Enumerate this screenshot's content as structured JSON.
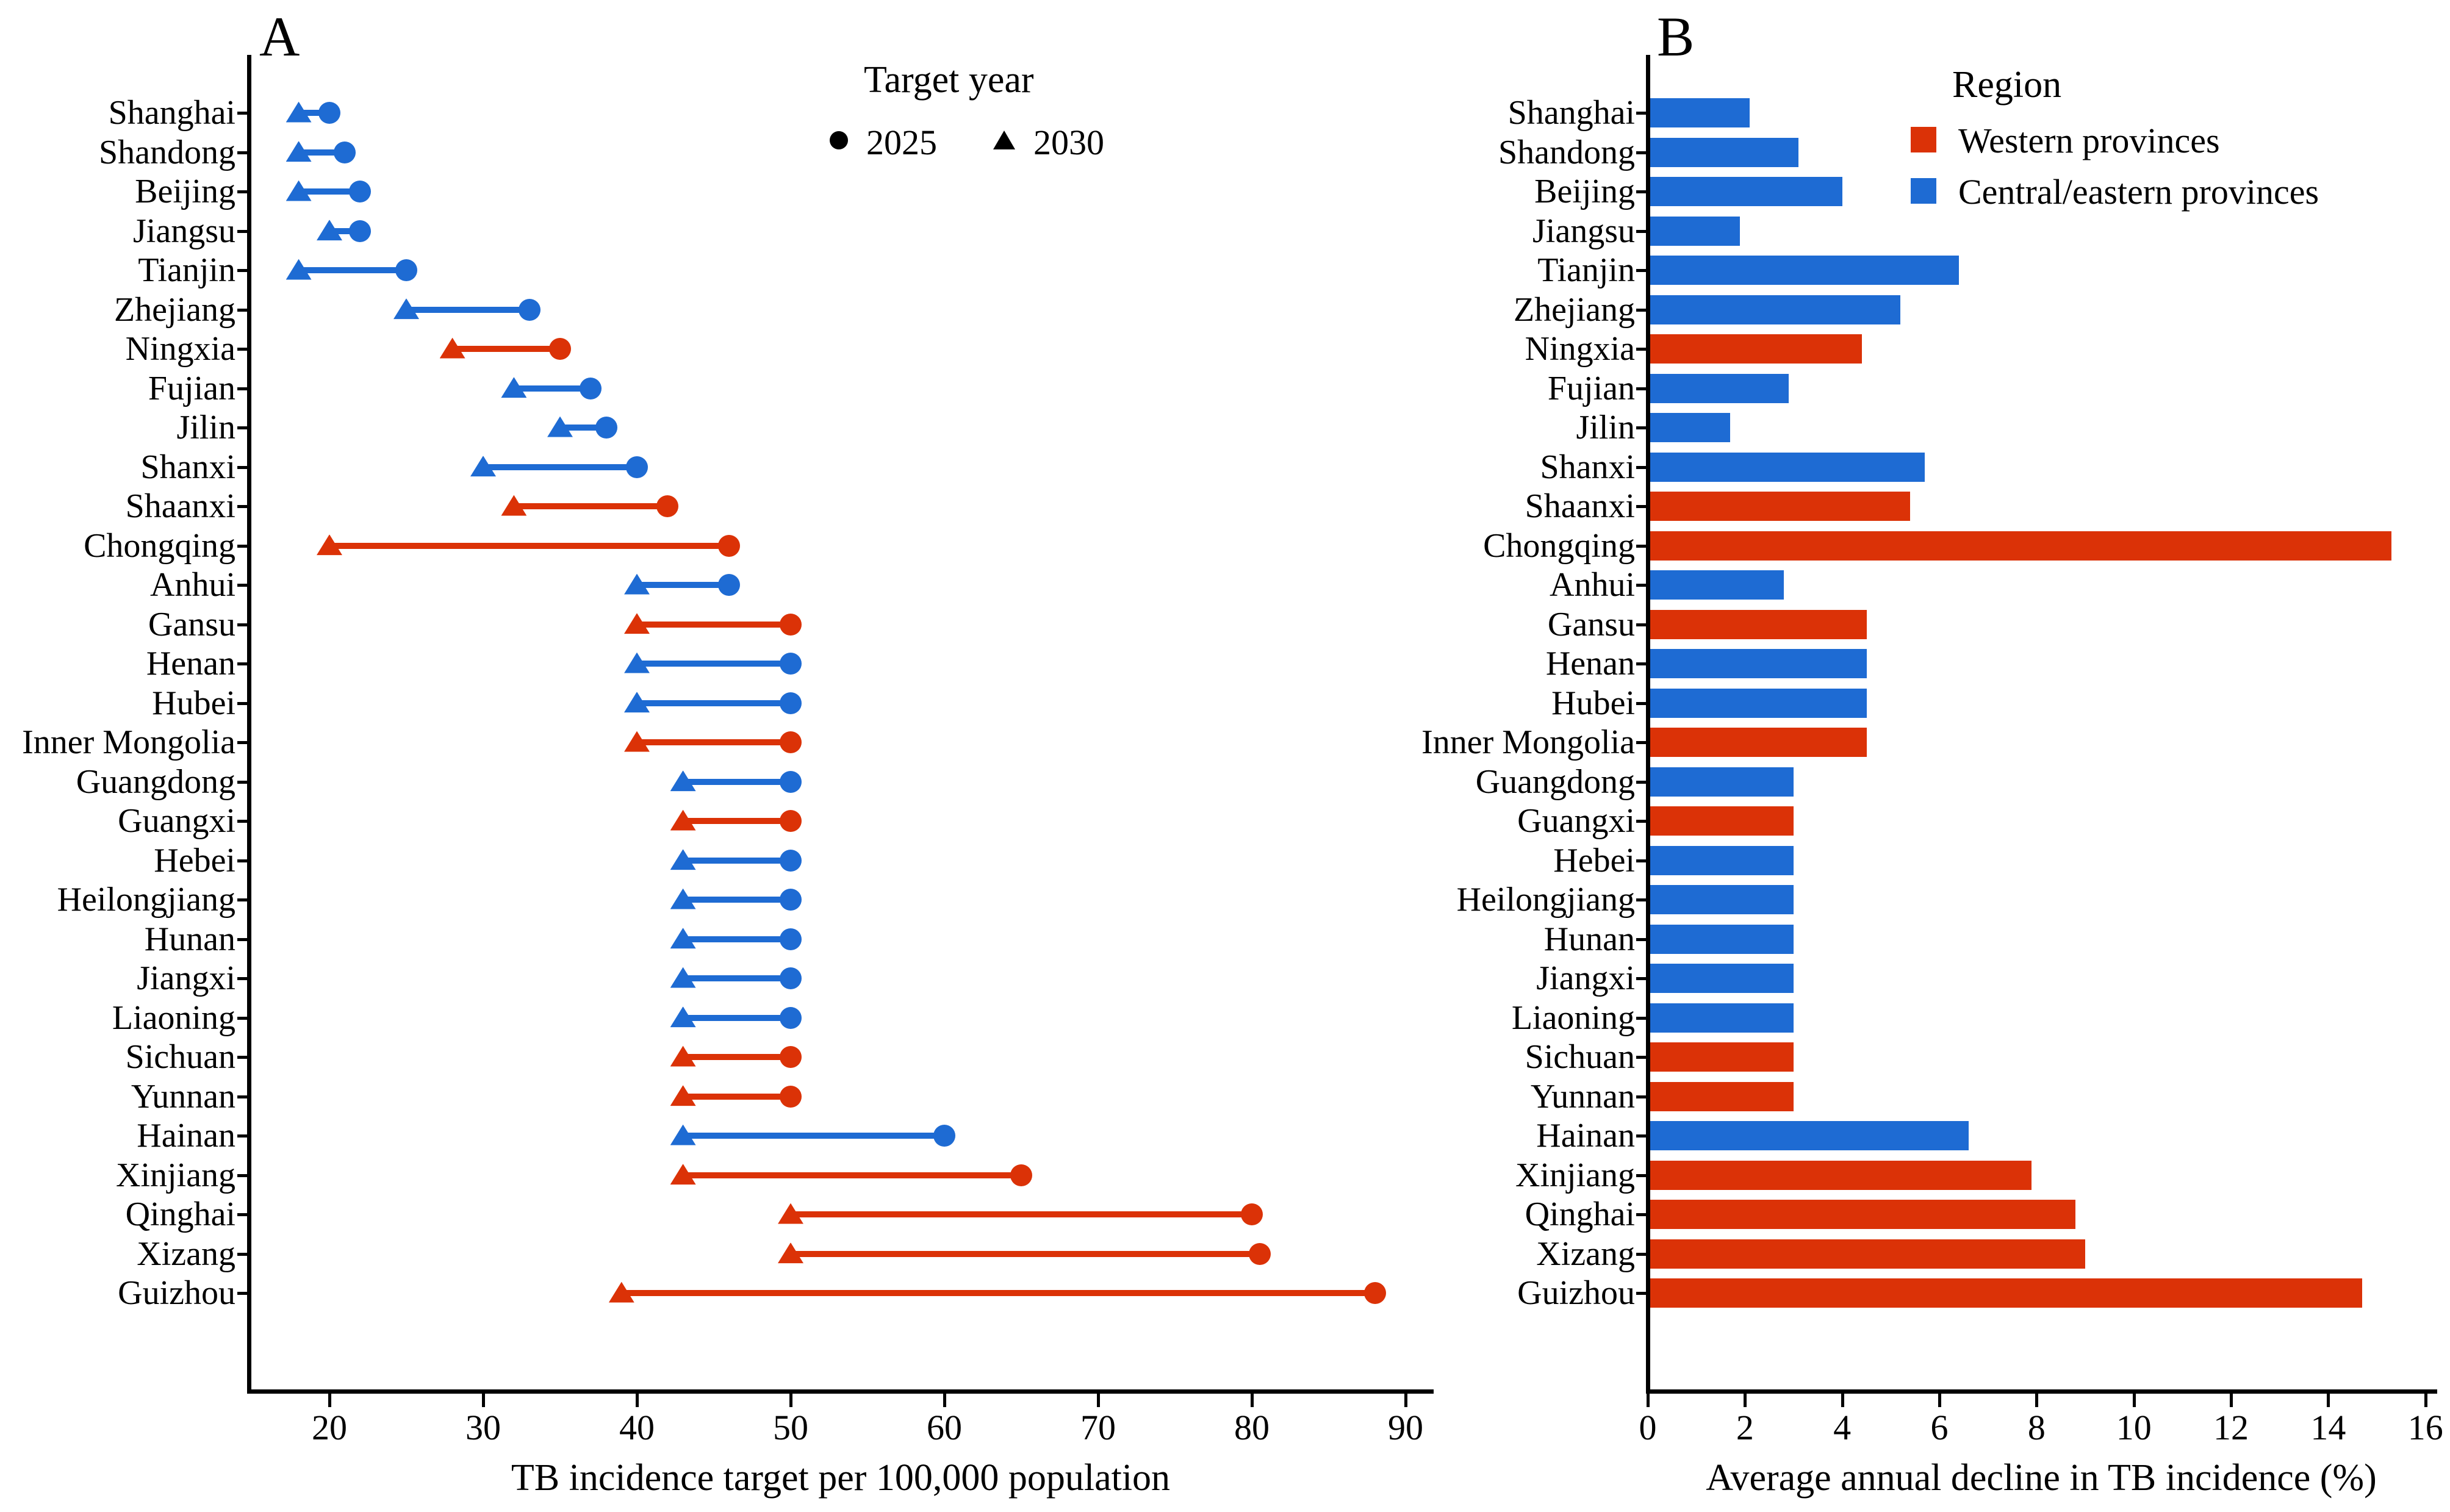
{
  "colors": {
    "western": "#DB3207",
    "central_eastern": "#1E6BD3",
    "axis": "#000000"
  },
  "panels": {
    "a_label": "A",
    "b_label": "B"
  },
  "chart_data": [
    {
      "type": "scatter",
      "subtype": "dumbbell",
      "panel": "A",
      "xlabel": "TB incidence target per 100,000 population",
      "xlim": [
        14.5,
        92
      ],
      "xticks": [
        20,
        30,
        40,
        50,
        60,
        70,
        80,
        90
      ],
      "grid": false,
      "legend": {
        "title": "Target year",
        "position": "top-center",
        "items": [
          {
            "marker": "circle",
            "label": "2025"
          },
          {
            "marker": "triangle",
            "label": "2030"
          }
        ]
      },
      "categories": [
        "Shanghai",
        "Shandong",
        "Beijing",
        "Jiangsu",
        "Tianjin",
        "Zhejiang",
        "Ningxia",
        "Fujian",
        "Jilin",
        "Shanxi",
        "Shaanxi",
        "Chongqing",
        "Anhui",
        "Gansu",
        "Henan",
        "Hubei",
        "Inner Mongolia",
        "Guangdong",
        "Guangxi",
        "Hebei",
        "Heilongjiang",
        "Hunan",
        "Jiangxi",
        "Liaoning",
        "Sichuan",
        "Yunnan",
        "Hainan",
        "Xinjiang",
        "Qinghai",
        "Xizang",
        "Guizhou"
      ],
      "region": [
        "central_eastern",
        "central_eastern",
        "central_eastern",
        "central_eastern",
        "central_eastern",
        "central_eastern",
        "western",
        "central_eastern",
        "central_eastern",
        "central_eastern",
        "western",
        "western",
        "central_eastern",
        "western",
        "central_eastern",
        "central_eastern",
        "western",
        "central_eastern",
        "western",
        "central_eastern",
        "central_eastern",
        "central_eastern",
        "central_eastern",
        "central_eastern",
        "western",
        "western",
        "central_eastern",
        "western",
        "western",
        "western",
        "western"
      ],
      "series": [
        {
          "name": "2025",
          "marker": "circle",
          "values": [
            20,
            21,
            22,
            22,
            25,
            33,
            35,
            37,
            38,
            40,
            42,
            46,
            46,
            50,
            50,
            50,
            50,
            50,
            50,
            50,
            50,
            50,
            50,
            50,
            50,
            50,
            60,
            65,
            80,
            80.5,
            88
          ]
        },
        {
          "name": "2030",
          "marker": "triangle",
          "values": [
            18,
            18,
            18,
            20,
            18,
            25,
            28,
            32,
            35,
            30,
            32,
            20,
            40,
            40,
            40,
            40,
            40,
            43,
            43,
            43,
            43,
            43,
            43,
            43,
            43,
            43,
            43,
            43,
            50,
            50,
            39
          ]
        }
      ]
    },
    {
      "type": "bar",
      "orientation": "horizontal",
      "panel": "B",
      "xlabel": "Average annual decline in TB incidence (%)",
      "xlim": [
        0,
        16.5
      ],
      "xticks": [
        0,
        2,
        4,
        6,
        8,
        10,
        12,
        14,
        16
      ],
      "grid": false,
      "legend": {
        "title": "Region",
        "position": "top-right",
        "items": [
          {
            "label": "Western provinces",
            "color_key": "western"
          },
          {
            "label": "Central/eastern provinces",
            "color_key": "central_eastern"
          }
        ]
      },
      "categories": [
        "Shanghai",
        "Shandong",
        "Beijing",
        "Jiangsu",
        "Tianjin",
        "Zhejiang",
        "Ningxia",
        "Fujian",
        "Jilin",
        "Shanxi",
        "Shaanxi",
        "Chongqing",
        "Anhui",
        "Gansu",
        "Henan",
        "Hubei",
        "Inner Mongolia",
        "Guangdong",
        "Guangxi",
        "Hebei",
        "Heilongjiang",
        "Hunan",
        "Jiangxi",
        "Liaoning",
        "Sichuan",
        "Yunnan",
        "Hainan",
        "Xinjiang",
        "Qinghai",
        "Xizang",
        "Guizhou"
      ],
      "region": [
        "central_eastern",
        "central_eastern",
        "central_eastern",
        "central_eastern",
        "central_eastern",
        "central_eastern",
        "western",
        "central_eastern",
        "central_eastern",
        "central_eastern",
        "western",
        "western",
        "central_eastern",
        "western",
        "central_eastern",
        "central_eastern",
        "western",
        "central_eastern",
        "western",
        "central_eastern",
        "central_eastern",
        "central_eastern",
        "central_eastern",
        "central_eastern",
        "western",
        "western",
        "central_eastern",
        "western",
        "western",
        "western",
        "western"
      ],
      "values": [
        2.1,
        3.1,
        4.0,
        1.9,
        6.4,
        5.2,
        4.4,
        2.9,
        1.7,
        5.7,
        5.4,
        15.3,
        2.8,
        4.5,
        4.5,
        4.5,
        4.5,
        3.0,
        3.0,
        3.0,
        3.0,
        3.0,
        3.0,
        3.0,
        3.0,
        3.0,
        6.6,
        7.9,
        8.8,
        9.0,
        14.7
      ]
    }
  ]
}
